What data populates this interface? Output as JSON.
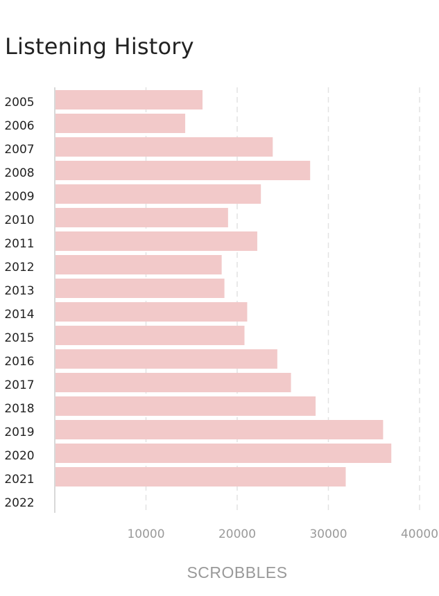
{
  "page": {
    "title": "Listening History"
  },
  "chart_data": {
    "type": "bar",
    "orientation": "horizontal",
    "title": "Listening History",
    "xlabel": "SCROBBLES",
    "ylabel": "",
    "categories": [
      "2005",
      "2006",
      "2007",
      "2008",
      "2009",
      "2010",
      "2011",
      "2012",
      "2013",
      "2014",
      "2015",
      "2016",
      "2017",
      "2018",
      "2019",
      "2020",
      "2021",
      "2022"
    ],
    "values": [
      16200,
      14300,
      23900,
      28000,
      22600,
      19000,
      22200,
      18300,
      18600,
      21100,
      20800,
      24400,
      25900,
      28600,
      36000,
      36900,
      31900,
      0
    ],
    "x_ticks": [
      10000,
      20000,
      30000,
      40000
    ],
    "x_tick_labels": [
      "10000",
      "20000",
      "30000",
      "40000"
    ],
    "xlim": [
      0,
      40000
    ],
    "grid": "vertical dashed",
    "legend": "none",
    "colors": {
      "bar": "#f2c9c9",
      "grid": "#e2e2e2",
      "axis": "#cccccc"
    }
  }
}
